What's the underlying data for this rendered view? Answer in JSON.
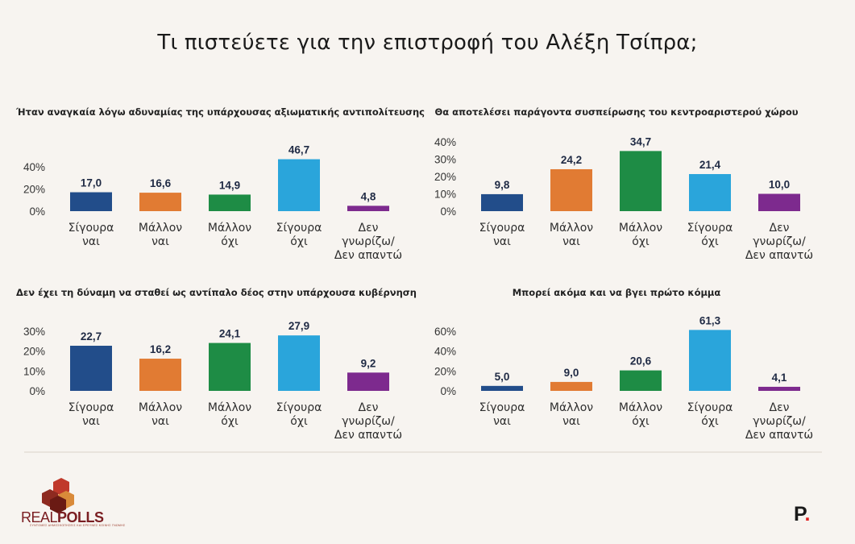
{
  "title": "Τι πιστεύετε για την επιστροφή του Αλέξη Τσίπρα;",
  "colors": [
    "#224d8a",
    "#e17b33",
    "#1e8c45",
    "#2aa5db",
    "#7d2a8e"
  ],
  "chart_data": [
    {
      "type": "bar",
      "title": "Ήταν αναγκαία λόγω αδυναμίας της υπάρχουσας αξιωματικής αντιπολίτευσης",
      "categories": [
        [
          "Σίγουρα",
          "ναι"
        ],
        [
          "Μάλλον",
          "ναι"
        ],
        [
          "Μάλλον",
          "όχι"
        ],
        [
          "Σίγουρα",
          "όχι"
        ],
        [
          "Δεν",
          "γνωρίζω/",
          "Δεν απαντώ"
        ]
      ],
      "values": [
        17.0,
        16.6,
        14.9,
        46.7,
        4.8
      ],
      "labels": [
        "17,0",
        "16,6",
        "14,9",
        "46,7",
        "4,8"
      ],
      "ylim": [
        0,
        50
      ],
      "yticks": [
        0,
        20,
        40
      ],
      "ytick_labels": [
        "0%",
        "20%",
        "40%"
      ]
    },
    {
      "type": "bar",
      "title": "Θα αποτελέσει παράγοντα συσπείρωσης του κεντροαριστερού χώρου",
      "categories": [
        [
          "Σίγουρα",
          "ναι"
        ],
        [
          "Μάλλον",
          "ναι"
        ],
        [
          "Μάλλον",
          "όχι"
        ],
        [
          "Σίγουρα",
          "όχι"
        ],
        [
          "Δεν",
          "γνωρίζω/",
          "Δεν απαντώ"
        ]
      ],
      "values": [
        9.8,
        24.2,
        34.7,
        21.4,
        10.0
      ],
      "labels": [
        "9,8",
        "24,2",
        "34,7",
        "21,4",
        "10,0"
      ],
      "ylim": [
        0,
        40
      ],
      "yticks": [
        0,
        10,
        20,
        30,
        40
      ],
      "ytick_labels": [
        "0%",
        "10%",
        "20%",
        "30%",
        "40%"
      ]
    },
    {
      "type": "bar",
      "title": "Δεν έχει τη δύναμη να σταθεί ως αντίπαλο δέος στην υπάρχουσα κυβέρνηση",
      "categories": [
        [
          "Σίγουρα",
          "ναι"
        ],
        [
          "Μάλλον",
          "ναι"
        ],
        [
          "Μάλλον",
          "όχι"
        ],
        [
          "Σίγουρα",
          "όχι"
        ],
        [
          "Δεν",
          "γνωρίζω/",
          "Δεν απαντώ"
        ]
      ],
      "values": [
        22.7,
        16.2,
        24.1,
        27.9,
        9.2
      ],
      "labels": [
        "22,7",
        "16,2",
        "24,1",
        "27,9",
        "9,2"
      ],
      "ylim": [
        0,
        30
      ],
      "yticks": [
        0,
        10,
        20,
        30
      ],
      "ytick_labels": [
        "0%",
        "10%",
        "20%",
        "30%"
      ]
    },
    {
      "type": "bar",
      "title": "Μπορεί ακόμα και να βγει πρώτο κόμμα",
      "categories": [
        [
          "Σίγουρα",
          "ναι"
        ],
        [
          "Μάλλον",
          "ναι"
        ],
        [
          "Μάλλον",
          "όχι"
        ],
        [
          "Σίγουρα",
          "όχι"
        ],
        [
          "Δεν",
          "γνωρίζω/",
          "Δεν απαντώ"
        ]
      ],
      "values": [
        5.0,
        9.0,
        20.6,
        61.3,
        4.1
      ],
      "labels": [
        "5,0",
        "9,0",
        "20,6",
        "61,3",
        "4,1"
      ],
      "ylim": [
        0,
        60
      ],
      "yticks": [
        0,
        20,
        40,
        60
      ],
      "ytick_labels": [
        "0%",
        "20%",
        "40%",
        "60%"
      ]
    }
  ],
  "logo": {
    "name_light": "REAL",
    "name_bold": "POLLS",
    "tagline": "ΣΥΝΤΟΜΕΣ ΔΗΜΟΣΚΟΠΗΣΕΙΣ ΚΑΙ ΕΡΕΥΝΕΣ ΚΟΙΝΗΣ ΓΝΩΜΗΣ"
  },
  "publisher_logo": {
    "letter": "P",
    "dot": "."
  }
}
